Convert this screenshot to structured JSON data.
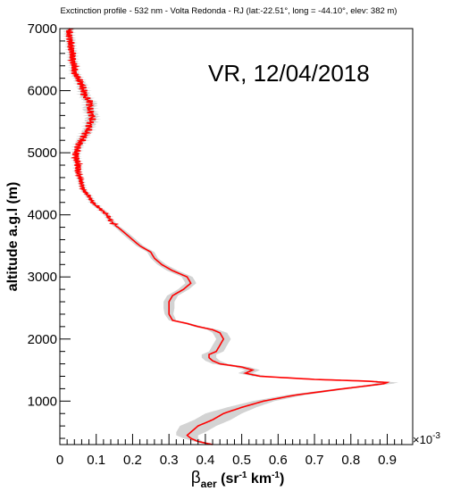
{
  "chart_data": {
    "type": "line",
    "title": "Exctinction profile - 532 nm - Volta Redonda - RJ (lat:-22.51°, long = -44.10°, elev: 382 m)",
    "annotation": "VR, 12/04/2018",
    "xlabel_base": "β",
    "xlabel_sub": "aer",
    "xlabel_units_open": " (sr",
    "xlabel_units_exp1": "-1",
    "xlabel_units_mid": " km",
    "xlabel_units_exp2": "-1",
    "xlabel_units_close": ")",
    "ylabel": "altitude a.g.l (m)",
    "x_exponent_label": "×10",
    "x_exponent_power": "-3",
    "xlim": [
      0,
      0.97
    ],
    "ylim": [
      300,
      7000
    ],
    "x_ticks": [
      0,
      0.1,
      0.2,
      0.3,
      0.4,
      0.5,
      0.6,
      0.7,
      0.8,
      0.9
    ],
    "x_tick_labels": [
      "0",
      "0.1",
      "0.2",
      "0.3",
      "0.4",
      "0.5",
      "0.6",
      "0.7",
      "0.8",
      "0.9"
    ],
    "y_ticks": [
      1000,
      2000,
      3000,
      4000,
      5000,
      6000,
      7000
    ],
    "y_tick_labels": [
      "1000",
      "2000",
      "3000",
      "4000",
      "5000",
      "6000",
      "7000"
    ],
    "grid": false,
    "line_color": "#ff0000",
    "band_color": "#d3d3d3",
    "profile": {
      "altitude": [
        300,
        350,
        400,
        450,
        500,
        600,
        700,
        800,
        900,
        1000,
        1100,
        1200,
        1250,
        1280,
        1300,
        1320,
        1350,
        1400,
        1450,
        1500,
        1550,
        1600,
        1650,
        1700,
        1750,
        1800,
        1900,
        2000,
        2100,
        2150,
        2200,
        2250,
        2300,
        2400,
        2500,
        2600,
        2700,
        2800,
        2900,
        3000,
        3100,
        3200,
        3300,
        3400,
        3500,
        3600,
        3700,
        3800,
        3900,
        4000,
        4100,
        4200,
        4300,
        4400,
        4500,
        4600,
        4700,
        4800,
        4900,
        5000,
        5100,
        5200,
        5300,
        5400,
        5500,
        5600,
        5700,
        5800,
        5900,
        6000,
        6100,
        6200,
        6300,
        6400,
        6500,
        6600,
        6700,
        6800,
        6900,
        7000
      ],
      "beta": [
        0.42,
        0.38,
        0.36,
        0.35,
        0.36,
        0.38,
        0.42,
        0.45,
        0.5,
        0.56,
        0.65,
        0.78,
        0.85,
        0.89,
        0.9,
        0.85,
        0.7,
        0.55,
        0.51,
        0.53,
        0.5,
        0.44,
        0.42,
        0.41,
        0.41,
        0.43,
        0.44,
        0.45,
        0.44,
        0.42,
        0.38,
        0.35,
        0.31,
        0.3,
        0.3,
        0.3,
        0.31,
        0.34,
        0.36,
        0.35,
        0.31,
        0.28,
        0.26,
        0.25,
        0.22,
        0.2,
        0.18,
        0.16,
        0.14,
        0.13,
        0.11,
        0.09,
        0.08,
        0.065,
        0.06,
        0.055,
        0.05,
        0.05,
        0.045,
        0.045,
        0.05,
        0.06,
        0.07,
        0.08,
        0.085,
        0.09,
        0.08,
        0.085,
        0.07,
        0.065,
        0.06,
        0.05,
        0.04,
        0.04,
        0.035,
        0.035,
        0.03,
        0.03,
        0.025,
        0.025
      ],
      "error": [
        0.01,
        0.012,
        0.02,
        0.03,
        0.04,
        0.05,
        0.05,
        0.05,
        0.04,
        0.03,
        0.025,
        0.02,
        0.02,
        0.025,
        0.03,
        0.03,
        0.025,
        0.02,
        0.02,
        0.02,
        0.02,
        0.02,
        0.02,
        0.02,
        0.02,
        0.02,
        0.02,
        0.02,
        0.02,
        0.015,
        0.012,
        0.01,
        0.01,
        0.012,
        0.015,
        0.015,
        0.015,
        0.015,
        0.015,
        0.015,
        0.015,
        0.012,
        0.01,
        0.01,
        0.01,
        0.01,
        0.01,
        0.008,
        0.008,
        0.008,
        0.008,
        0.008,
        0.008,
        0.008,
        0.008,
        0.008,
        0.008,
        0.008,
        0.008,
        0.008,
        0.01,
        0.012,
        0.012,
        0.012,
        0.015,
        0.015,
        0.015,
        0.015,
        0.012,
        0.012,
        0.012,
        0.01,
        0.01,
        0.01,
        0.01,
        0.01,
        0.01,
        0.01,
        0.01,
        0.01
      ]
    }
  }
}
